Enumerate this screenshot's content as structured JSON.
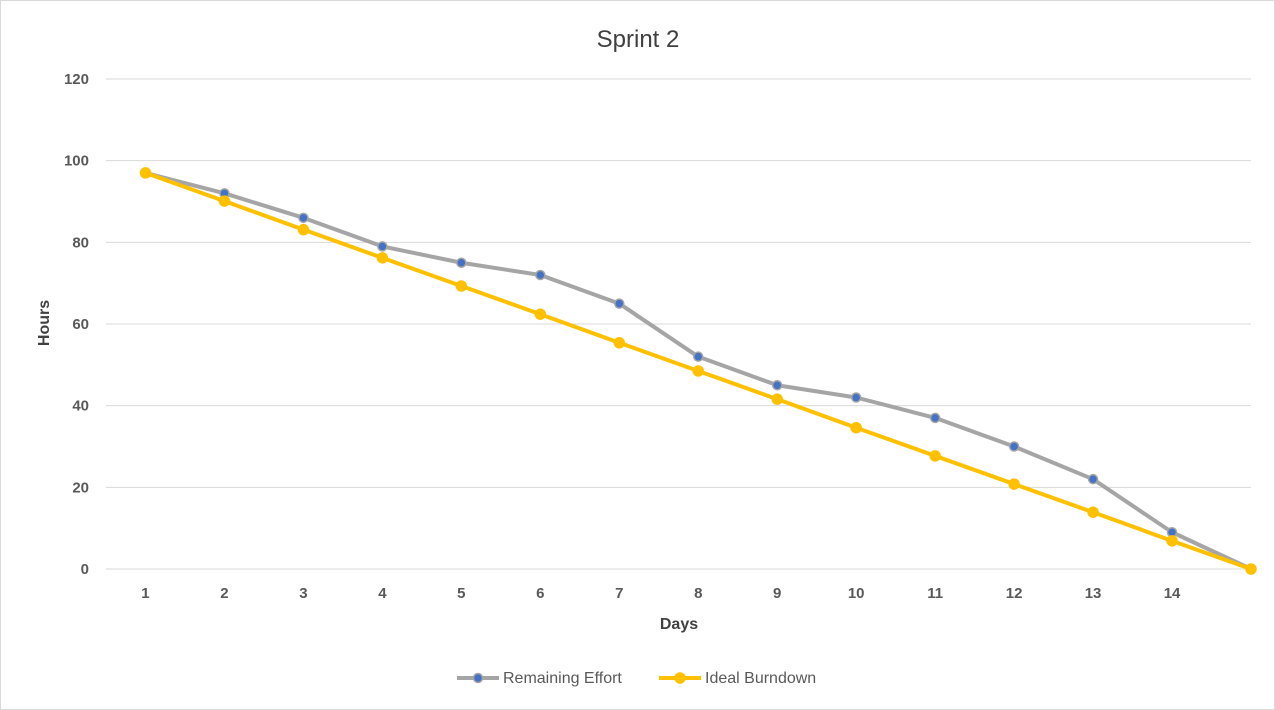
{
  "chart_data": {
    "type": "line",
    "title": "Sprint 2",
    "xlabel": "Days",
    "ylabel": "Hours",
    "categories": [
      "1",
      "2",
      "3",
      "4",
      "5",
      "6",
      "7",
      "8",
      "9",
      "10",
      "11",
      "12",
      "13",
      "14",
      ""
    ],
    "ylim": [
      0,
      120
    ],
    "yticks": [
      0,
      20,
      40,
      60,
      80,
      100,
      120
    ],
    "grid": true,
    "legend": "bottom",
    "series": [
      {
        "name": "Remaining Effort",
        "color": "#a5a5a5",
        "marker_color": "#4472c4",
        "values": [
          97,
          92,
          86,
          79,
          75,
          72,
          65,
          52,
          45,
          42,
          37,
          30,
          22,
          9,
          0
        ]
      },
      {
        "name": "Ideal Burndown",
        "color": "#ffc000",
        "marker_color": "#ffc000",
        "values": [
          97,
          90.1,
          83.1,
          76.2,
          69.3,
          62.4,
          55.4,
          48.5,
          41.6,
          34.6,
          27.7,
          20.8,
          13.9,
          6.9,
          0
        ]
      }
    ]
  }
}
